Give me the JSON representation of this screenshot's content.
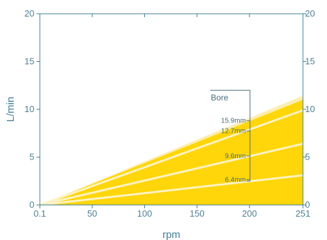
{
  "chart_data": {
    "type": "area",
    "title": "",
    "xlabel": "rpm",
    "ylabel": "L/min",
    "x_ticks": [
      "0.1",
      "50",
      "100",
      "150",
      "200",
      "251"
    ],
    "x_tick_values": [
      0.1,
      50,
      100,
      150,
      200,
      251
    ],
    "y_ticks": [
      "0",
      "5",
      "10",
      "15",
      "20"
    ],
    "y_tick_values": [
      0,
      5,
      10,
      15,
      20
    ],
    "xlim": [
      0.1,
      251
    ],
    "ylim": [
      0,
      20
    ],
    "grid": false,
    "series": [
      {
        "name": "15.9mm",
        "x": [
          0.1,
          251
        ],
        "y": [
          0,
          11.0
        ]
      },
      {
        "name": "12.7mm",
        "x": [
          0.1,
          251
        ],
        "y": [
          0,
          9.9
        ]
      },
      {
        "name": "9.6mm",
        "x": [
          0.1,
          251
        ],
        "y": [
          0,
          6.4
        ]
      },
      {
        "name": "6.4mm",
        "x": [
          0.1,
          251
        ],
        "y": [
          0,
          3.1
        ]
      }
    ],
    "annotation": {
      "title": "Bore"
    }
  },
  "colors": {
    "axis": "#3f7f96",
    "tick_text": "#4d7f94",
    "fill_band": "#ffd60a",
    "fill_outer": "#fbeeb0",
    "line": "#fdf3c4",
    "annotation": "#4a6b7a"
  }
}
